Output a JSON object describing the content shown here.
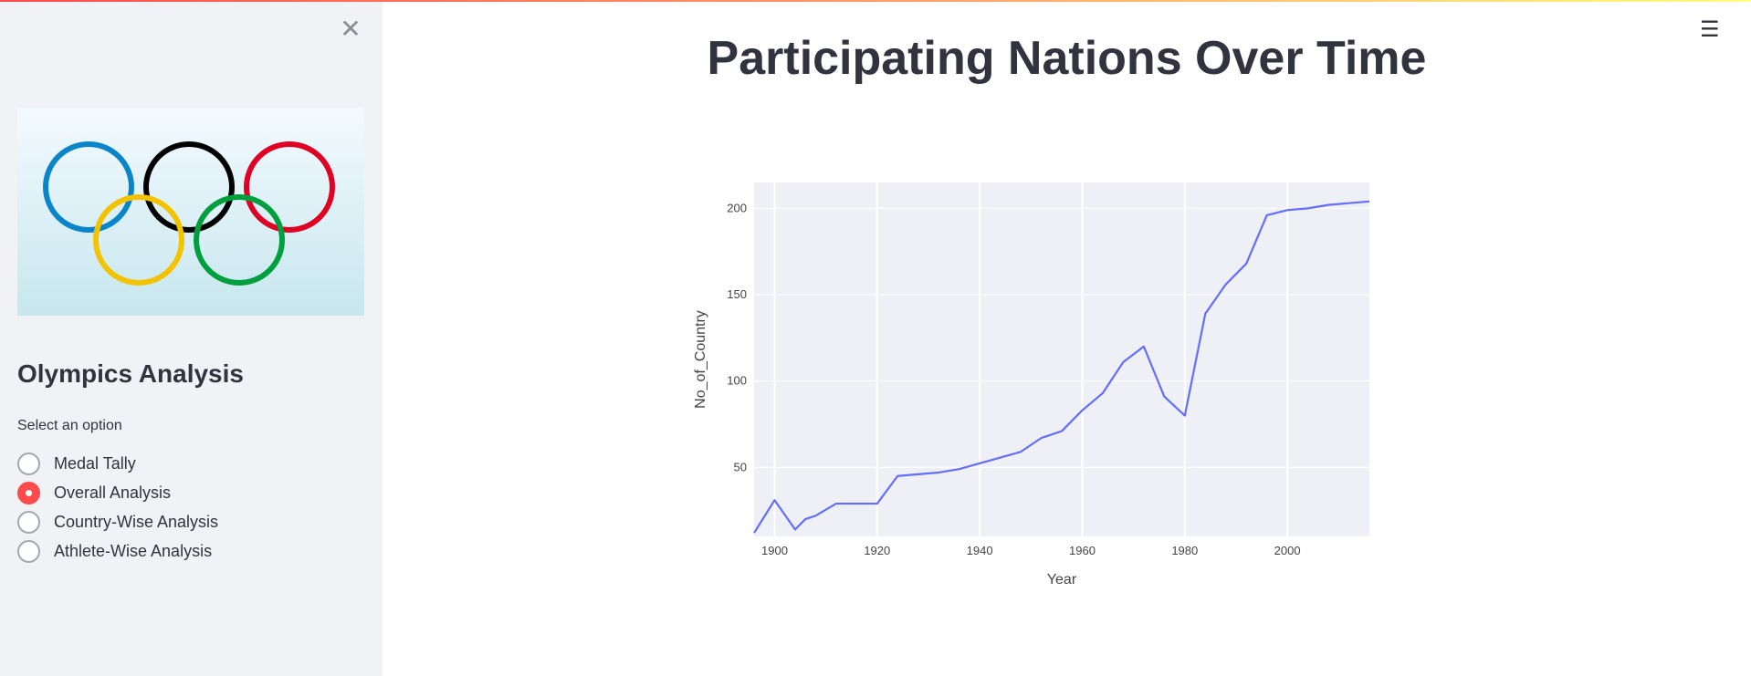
{
  "sidebar": {
    "title": "Olympics Analysis",
    "select_label": "Select an option",
    "options": [
      {
        "label": "Medal Tally",
        "selected": false
      },
      {
        "label": "Overall Analysis",
        "selected": true
      },
      {
        "label": "Country-Wise Analysis",
        "selected": false
      },
      {
        "label": "Athlete-Wise Analysis",
        "selected": false
      }
    ]
  },
  "main": {
    "title": "Participating Nations Over Time"
  },
  "colors": {
    "accent": "#ff4b4b",
    "line": "#636efa",
    "plot_bg": "#eef0f5",
    "sidebar_bg": "#f0f2f6"
  },
  "chart_data": {
    "type": "line",
    "xlabel": "Year",
    "ylabel": "No_of_Country",
    "xlim": [
      1896,
      2016
    ],
    "ylim": [
      10,
      215
    ],
    "xticks": [
      1900,
      1920,
      1940,
      1960,
      1980,
      2000
    ],
    "yticks": [
      50,
      100,
      150,
      200
    ],
    "grid": true,
    "series": [
      {
        "x": [
          1896,
          1900,
          1904,
          1906,
          1908,
          1912,
          1920,
          1924,
          1928,
          1932,
          1936,
          1948,
          1952,
          1956,
          1960,
          1964,
          1968,
          1972,
          1976,
          1980,
          1984,
          1988,
          1992,
          1996,
          2000,
          2004,
          2008,
          2012,
          2016
        ],
        "y": [
          12,
          31,
          14,
          20,
          22,
          29,
          29,
          45,
          46,
          47,
          49,
          59,
          67,
          71,
          83,
          93,
          111,
          120,
          91,
          80,
          139,
          156,
          168,
          196,
          199,
          200,
          202,
          203,
          204
        ]
      }
    ]
  }
}
